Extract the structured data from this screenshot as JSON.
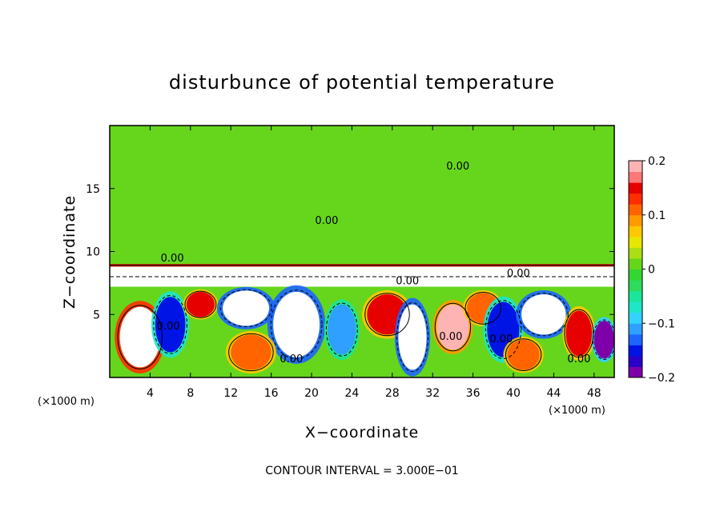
{
  "chart_data": {
    "type": "heatmap",
    "title": "disturbunce of potential temperature",
    "xlabel": "X−coordinate",
    "ylabel": "Z−coordinate",
    "x_unit_left": "(×1000 m)",
    "x_unit_right": "(×1000 m)",
    "xlim": [
      0,
      50
    ],
    "ylim": [
      0,
      20
    ],
    "xticks": [
      4,
      8,
      12,
      16,
      20,
      24,
      28,
      32,
      36,
      40,
      44,
      48
    ],
    "yticks": [
      5,
      10,
      15
    ],
    "contour_interval_text": "CONTOUR INTERVAL = 3.000E−01",
    "contour_labels": [
      "0.00",
      "0.00",
      "0.00",
      "0.00",
      "0.00",
      "0.00",
      "0.00",
      "0.00",
      "0.00",
      "0.00"
    ],
    "colorbar": {
      "vmin": -0.2,
      "vmax": 0.2,
      "tick_values": [
        0.2,
        0.1,
        0,
        -0.1,
        -0.2
      ],
      "tick_labels": [
        "0.2",
        "0.1",
        "0",
        "−0.1",
        "−0.2"
      ],
      "colors": [
        "#7d00a8",
        "#2c00c8",
        "#0014e6",
        "#1e64ff",
        "#2fa0ff",
        "#33d2ff",
        "#1ee6c8",
        "#19e69b",
        "#2edb5a",
        "#33d633",
        "#66d61c",
        "#aadf14",
        "#e6e600",
        "#ffc800",
        "#ff9b00",
        "#ff6400",
        "#ff2d00",
        "#e60000",
        "#ff7878",
        "#ffb4b4"
      ]
    },
    "background_value": 0.0,
    "inversion_level_z": 8.9,
    "regions": [
      {
        "x": [
          0,
          50
        ],
        "z": [
          9,
          20
        ],
        "value": 0.0
      },
      {
        "x": [
          0,
          50
        ],
        "z": [
          8.8,
          9.0
        ],
        "value": 0.15
      },
      {
        "x": [
          0,
          50
        ],
        "z": [
          7.2,
          8.8
        ],
        "value": -0.25
      },
      {
        "x": [
          0,
          50
        ],
        "z": [
          0,
          7.2
        ],
        "value": 0.0
      }
    ],
    "blobs": [
      {
        "x": 3.0,
        "z": 3.2,
        "rx": 2.0,
        "rz": 2.4,
        "value": 0.25
      },
      {
        "x": 6.0,
        "z": 4.2,
        "rx": 1.5,
        "rz": 2.2,
        "value": -0.15
      },
      {
        "x": 9.0,
        "z": 5.8,
        "rx": 1.4,
        "rz": 1.0,
        "value": 0.15
      },
      {
        "x": 13.5,
        "z": 5.5,
        "rx": 2.3,
        "rz": 1.4,
        "value": -0.25
      },
      {
        "x": 18.5,
        "z": 4.2,
        "rx": 2.3,
        "rz": 2.6,
        "value": -0.25
      },
      {
        "x": 14.0,
        "z": 2.0,
        "rx": 2.0,
        "rz": 1.4,
        "value": 0.12
      },
      {
        "x": 23.0,
        "z": 3.8,
        "rx": 1.4,
        "rz": 2.0,
        "value": -0.12
      },
      {
        "x": 27.5,
        "z": 5.0,
        "rx": 2.0,
        "rz": 1.6,
        "value": 0.15
      },
      {
        "x": 30.0,
        "z": 3.2,
        "rx": 1.4,
        "rz": 2.6,
        "value": -0.25
      },
      {
        "x": 34.0,
        "z": 4.0,
        "rx": 1.6,
        "rz": 1.8,
        "value": 0.18
      },
      {
        "x": 37.0,
        "z": 5.5,
        "rx": 1.6,
        "rz": 1.2,
        "value": 0.12
      },
      {
        "x": 39.0,
        "z": 3.8,
        "rx": 1.6,
        "rz": 2.2,
        "value": -0.15
      },
      {
        "x": 43.0,
        "z": 5.0,
        "rx": 2.2,
        "rz": 1.6,
        "value": -0.25
      },
      {
        "x": 41.0,
        "z": 1.8,
        "rx": 1.6,
        "rz": 1.2,
        "value": 0.12
      },
      {
        "x": 46.5,
        "z": 3.5,
        "rx": 1.3,
        "rz": 1.8,
        "value": 0.15
      },
      {
        "x": 49.0,
        "z": 3.0,
        "rx": 1.0,
        "rz": 1.5,
        "value": -0.2
      }
    ]
  }
}
